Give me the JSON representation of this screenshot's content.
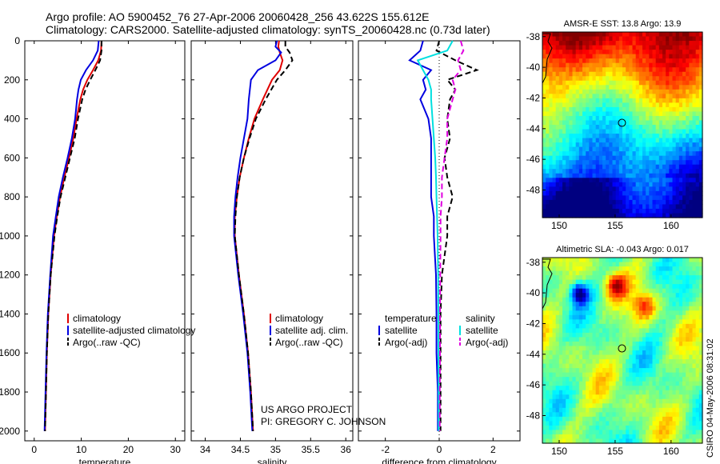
{
  "title": {
    "line1": "Argo profile: AO 5900452_76 27-Apr-2006 20060428_256 43.622S 155.612E",
    "line2": "Climatology: CARS2000. Satellite-adjusted climatology: synTS_20060428.nc (0.73d later)"
  },
  "colors": {
    "climatology": "#e00000",
    "satellite": "#0000e0",
    "argo": "#000000",
    "satellite_salinity": "#00e0e0",
    "argo_adj_salinity": "#e000e0"
  },
  "chart_data": [
    {
      "type": "line",
      "id": "temperature",
      "xlabel": "temperature",
      "ylabel": "",
      "xlim": [
        -2,
        32
      ],
      "ylim": [
        2050,
        0
      ],
      "xticks": [
        "0",
        "10",
        "20",
        "30"
      ],
      "xtick_values": [
        0,
        10,
        20,
        30
      ],
      "yticks": [
        "0",
        "200",
        "400",
        "600",
        "800",
        "1000",
        "1200",
        "1400",
        "1600",
        "1800",
        "2000"
      ],
      "ytick_values": [
        0,
        200,
        400,
        600,
        800,
        1000,
        1200,
        1400,
        1600,
        1800,
        2000
      ],
      "legend": [
        "climatology",
        "satellite-adjusted climatology",
        "Argo(..raw -QC)"
      ],
      "series": [
        {
          "name": "climatology",
          "style": "solid",
          "color": "#e00000",
          "pressure": [
            0,
            50,
            100,
            150,
            200,
            250,
            300,
            400,
            500,
            600,
            700,
            800,
            900,
            1000,
            1200,
            1400,
            1600,
            1800,
            2000
          ],
          "values": [
            14.3,
            14.2,
            13.6,
            12.5,
            11.3,
            10.4,
            9.8,
            9.0,
            8.3,
            7.4,
            6.4,
            5.5,
            4.8,
            4.2,
            3.5,
            3.0,
            2.7,
            2.5,
            2.3
          ]
        },
        {
          "name": "satellite-adjusted climatology",
          "style": "solid",
          "color": "#0000e0",
          "pressure": [
            0,
            50,
            100,
            150,
            200,
            250,
            300,
            400,
            500,
            600,
            700,
            800,
            900,
            1000,
            1200,
            1400,
            1600,
            1800,
            2000
          ],
          "values": [
            13.7,
            13.5,
            12.5,
            11.0,
            9.9,
            9.4,
            9.1,
            8.7,
            8.0,
            7.1,
            6.1,
            5.2,
            4.6,
            4.0,
            3.4,
            2.9,
            2.6,
            2.4,
            2.2
          ]
        },
        {
          "name": "Argo(..raw -QC)",
          "style": "dashed",
          "color": "#000000",
          "pressure": [
            0,
            50,
            100,
            150,
            200,
            250,
            300,
            400,
            500,
            600,
            700,
            800,
            900,
            1000,
            1200,
            1400,
            1600,
            1800,
            2000
          ],
          "values": [
            14.3,
            14.3,
            14.0,
            13.0,
            11.9,
            10.9,
            10.2,
            9.3,
            8.6,
            7.6,
            6.6,
            5.6,
            4.9,
            4.3,
            3.5,
            3.0,
            2.7,
            2.5,
            2.3
          ]
        }
      ]
    },
    {
      "type": "line",
      "id": "salinity",
      "xlabel": "salinity",
      "xlim": [
        33.8,
        36.1
      ],
      "ylim": [
        2050,
        0
      ],
      "xticks": [
        "34",
        "34.5",
        "35",
        "35.5",
        "36"
      ],
      "xtick_values": [
        34,
        34.5,
        35,
        35.5,
        36
      ],
      "legend": [
        "climatology",
        "satellite adj. clim.",
        "Argo(..raw -QC)"
      ],
      "annotation": [
        "US ARGO PROJECT",
        "PI: GREGORY C. JOHNSON"
      ],
      "series": [
        {
          "name": "climatology",
          "style": "solid",
          "color": "#e00000",
          "pressure": [
            0,
            30,
            60,
            100,
            150,
            200,
            300,
            400,
            500,
            600,
            700,
            800,
            900,
            1000,
            1200,
            1400,
            1600,
            1800,
            2000
          ],
          "values": [
            35.05,
            35.04,
            35.06,
            35.1,
            35.06,
            34.95,
            34.82,
            34.7,
            34.62,
            34.55,
            34.49,
            34.45,
            34.42,
            34.42,
            34.48,
            34.55,
            34.61,
            34.65,
            34.68
          ]
        },
        {
          "name": "satellite adj. clim.",
          "style": "solid",
          "color": "#0000e0",
          "pressure": [
            0,
            30,
            60,
            100,
            150,
            200,
            300,
            400,
            500,
            600,
            700,
            800,
            900,
            1000,
            1200,
            1400,
            1600,
            1800,
            2000
          ],
          "values": [
            35.02,
            35.0,
            35.08,
            35.0,
            34.75,
            34.65,
            34.62,
            34.6,
            34.55,
            34.5,
            34.46,
            34.43,
            34.41,
            34.41,
            34.47,
            34.54,
            34.6,
            34.64,
            34.67
          ]
        },
        {
          "name": "Argo(..raw -QC)",
          "style": "dashed",
          "color": "#000000",
          "pressure": [
            0,
            30,
            60,
            100,
            150,
            200,
            300,
            400,
            500,
            600,
            700,
            800,
            900,
            1000,
            1200,
            1400,
            1600,
            1800,
            2000
          ],
          "values": [
            35.14,
            35.14,
            35.2,
            35.24,
            35.14,
            35.02,
            34.86,
            34.72,
            34.63,
            34.55,
            34.49,
            34.45,
            34.43,
            34.42,
            34.48,
            34.55,
            34.61,
            34.65,
            34.68
          ]
        }
      ]
    },
    {
      "type": "line",
      "id": "difference",
      "xlabel": "difference from climatology",
      "xlim": [
        -3,
        3
      ],
      "ylim": [
        2050,
        0
      ],
      "xticks": [
        "-2",
        "0",
        "2"
      ],
      "xtick_values": [
        -2,
        0,
        2
      ],
      "legend_temperature_title": "temperature",
      "legend_salinity_title": "salinity",
      "legend": [
        "satellite",
        "Argo(-adj)",
        "satellite",
        "Argo(-adj)"
      ],
      "series": [
        {
          "name": "temperature satellite",
          "style": "solid",
          "color": "#0000e0",
          "pressure": [
            0,
            50,
            100,
            150,
            200,
            250,
            300,
            400,
            500,
            600,
            700,
            800,
            900,
            1000,
            1200,
            1400,
            1600,
            1800,
            2000
          ],
          "values": [
            -0.6,
            -0.7,
            -1.1,
            -0.3,
            -0.6,
            -0.5,
            -0.7,
            -0.4,
            -0.3,
            -0.3,
            -0.3,
            -0.3,
            -0.2,
            -0.2,
            -0.12,
            -0.1,
            -0.1,
            -0.05,
            -0.05
          ]
        },
        {
          "name": "temperature Argo(-adj)",
          "style": "dashed",
          "color": "#000000",
          "pressure": [
            0,
            50,
            100,
            150,
            200,
            250,
            300,
            400,
            500,
            600,
            700,
            800,
            900,
            1000,
            1200,
            1400,
            1600,
            1800,
            2000
          ],
          "values": [
            0.0,
            -0.1,
            0.6,
            1.4,
            0.3,
            0.6,
            0.4,
            0.3,
            0.4,
            0.2,
            0.3,
            0.5,
            0.3,
            0.3,
            0.1,
            0.05,
            0.05,
            0.05,
            0.05
          ]
        },
        {
          "name": "salinity satellite",
          "style": "solid",
          "color": "#00e0e0",
          "pressure": [
            0,
            50,
            100,
            150,
            200,
            250,
            300,
            400,
            500,
            600,
            700,
            800,
            900,
            1000,
            1200,
            1400,
            1600,
            1800,
            2000
          ],
          "values": [
            0.5,
            0.3,
            -0.8,
            -0.6,
            -0.4,
            -0.3,
            -0.3,
            -0.25,
            -0.2,
            -0.15,
            -0.12,
            -0.1,
            -0.08,
            -0.06,
            -0.04,
            -0.03,
            -0.03,
            -0.02,
            -0.02
          ]
        },
        {
          "name": "salinity Argo(-adj)",
          "style": "dashed",
          "color": "#e000e0",
          "pressure": [
            0,
            50,
            100,
            150,
            200,
            250,
            300,
            400,
            500,
            600,
            700,
            800,
            900,
            1000,
            1200,
            1400,
            1600,
            1800,
            2000
          ],
          "values": [
            0.8,
            0.9,
            0.7,
            0.8,
            0.5,
            0.6,
            0.5,
            0.3,
            0.3,
            0.2,
            0.1,
            0.1,
            0.05,
            0.05,
            0.04,
            0.03,
            0.03,
            0.02,
            0.02
          ]
        }
      ]
    },
    {
      "type": "heatmap",
      "id": "sst-map",
      "title": "AMSR-E SST: 13.8 Argo: 13.9",
      "xlim": [
        148.5,
        162.8
      ],
      "ylim": [
        -49.8,
        -37.7
      ],
      "xticks": [
        "150",
        "155",
        "160"
      ],
      "xtick_values": [
        150,
        155,
        160
      ],
      "yticks": [
        "-38",
        "-40",
        "-42",
        "-44",
        "-46",
        "-48"
      ],
      "ytick_values": [
        -38,
        -40,
        -42,
        -44,
        -46,
        -48
      ],
      "profile_location": {
        "lon": 155.612,
        "lat": -43.622
      }
    },
    {
      "type": "heatmap",
      "id": "sla-map",
      "title": "Altimetric SLA: -0.043 Argo: 0.017",
      "xlim": [
        148.5,
        162.8
      ],
      "ylim": [
        -49.8,
        -37.7
      ],
      "xticks": [
        "150",
        "155",
        "160"
      ],
      "xtick_values": [
        150,
        155,
        160
      ],
      "yticks": [
        "-38",
        "-40",
        "-42",
        "-44",
        "-46",
        "-48"
      ],
      "ytick_values": [
        -38,
        -40,
        -42,
        -44,
        -46,
        -48
      ],
      "profile_location": {
        "lon": 155.612,
        "lat": -43.622
      }
    }
  ],
  "side_stamp": "CSIRO 04-May-2006 08:31:02"
}
